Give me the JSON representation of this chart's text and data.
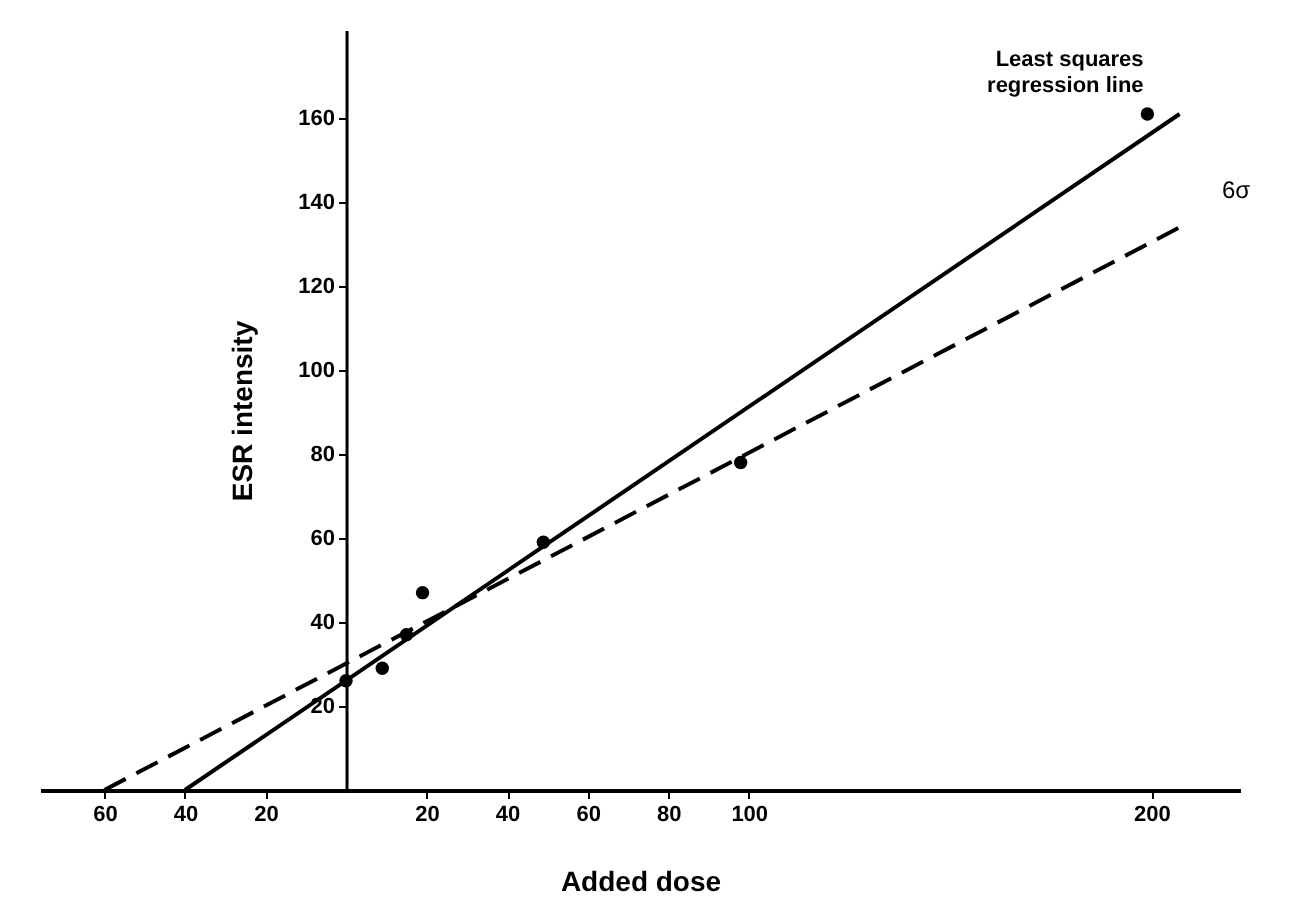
{
  "chart_data": {
    "type": "scatter",
    "xlabel": "Added dose",
    "ylabel": "ESR intensity",
    "xlim": [
      -76,
      222
    ],
    "ylim": [
      0,
      181
    ],
    "xticks": [
      {
        "value": -60,
        "label": "60"
      },
      {
        "value": -40,
        "label": "40"
      },
      {
        "value": -20,
        "label": "20"
      },
      20,
      40,
      60,
      80,
      100,
      200
    ],
    "yticks": [
      20,
      40,
      60,
      80,
      100,
      120,
      140,
      160
    ],
    "grid": false,
    "series": [
      {
        "color": "#000000",
        "marker": "circle",
        "x": [
          0,
          9,
          15,
          19,
          49,
          98,
          199
        ],
        "values": [
          26,
          29,
          37,
          47,
          59,
          78,
          161
        ]
      },
      {
        "type": "line",
        "name": "Least squares\nregression line",
        "color": "#000000",
        "line_style": "solid",
        "x": [
          -40,
          207
        ],
        "values": [
          0,
          161
        ]
      },
      {
        "type": "line",
        "color": "#000000",
        "line_style": "dashed",
        "x": [
          -60,
          207
        ],
        "values": [
          0,
          134
        ]
      }
    ],
    "annotations": [
      "6σ"
    ]
  }
}
